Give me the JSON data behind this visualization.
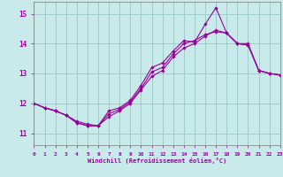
{
  "xlabel": "Windchill (Refroidissement éolien,°C)",
  "bg_color": "#c8eaea",
  "grid_color": "#a0cccc",
  "line_color": "#990099",
  "xlim": [
    0,
    23
  ],
  "ylim": [
    10.6,
    15.4
  ],
  "yticks": [
    11,
    12,
    13,
    14,
    15
  ],
  "xticks": [
    0,
    1,
    2,
    3,
    4,
    5,
    6,
    7,
    8,
    9,
    10,
    11,
    12,
    13,
    14,
    15,
    16,
    17,
    18,
    19,
    20,
    21,
    22,
    23
  ],
  "curve1_x": [
    0,
    1,
    2,
    3,
    4,
    5,
    6,
    7,
    8,
    9,
    10,
    11,
    12,
    13,
    14,
    15,
    16,
    17,
    18,
    19,
    20,
    21,
    22,
    23
  ],
  "curve1_y": [
    12.0,
    11.85,
    11.75,
    11.6,
    11.35,
    11.25,
    11.25,
    11.55,
    11.75,
    12.0,
    12.45,
    12.9,
    13.1,
    13.55,
    13.85,
    14.0,
    14.25,
    14.45,
    14.35,
    14.0,
    14.0,
    13.1,
    13.0,
    12.95
  ],
  "curve2_x": [
    0,
    1,
    2,
    3,
    4,
    5,
    6,
    7,
    8,
    9,
    10,
    11,
    12,
    13,
    14,
    15,
    16,
    17,
    18,
    19,
    20,
    21,
    22,
    23
  ],
  "curve2_y": [
    12.0,
    11.85,
    11.75,
    11.6,
    11.35,
    11.25,
    11.25,
    11.75,
    11.85,
    12.1,
    12.6,
    13.2,
    13.35,
    13.75,
    14.1,
    14.05,
    14.65,
    15.2,
    14.35,
    14.0,
    13.95,
    13.1,
    13.0,
    12.95
  ],
  "curve3_x": [
    0,
    1,
    2,
    3,
    4,
    5,
    6,
    7,
    8,
    9,
    10,
    11,
    12,
    13,
    14,
    15,
    16,
    17,
    18,
    19,
    20,
    21,
    22,
    23
  ],
  "curve3_y": [
    12.0,
    11.85,
    11.75,
    11.6,
    11.4,
    11.3,
    11.25,
    11.65,
    11.8,
    12.05,
    12.5,
    13.05,
    13.2,
    13.65,
    14.0,
    14.1,
    14.3,
    14.4,
    14.35,
    14.0,
    13.95,
    13.1,
    13.0,
    12.95
  ]
}
